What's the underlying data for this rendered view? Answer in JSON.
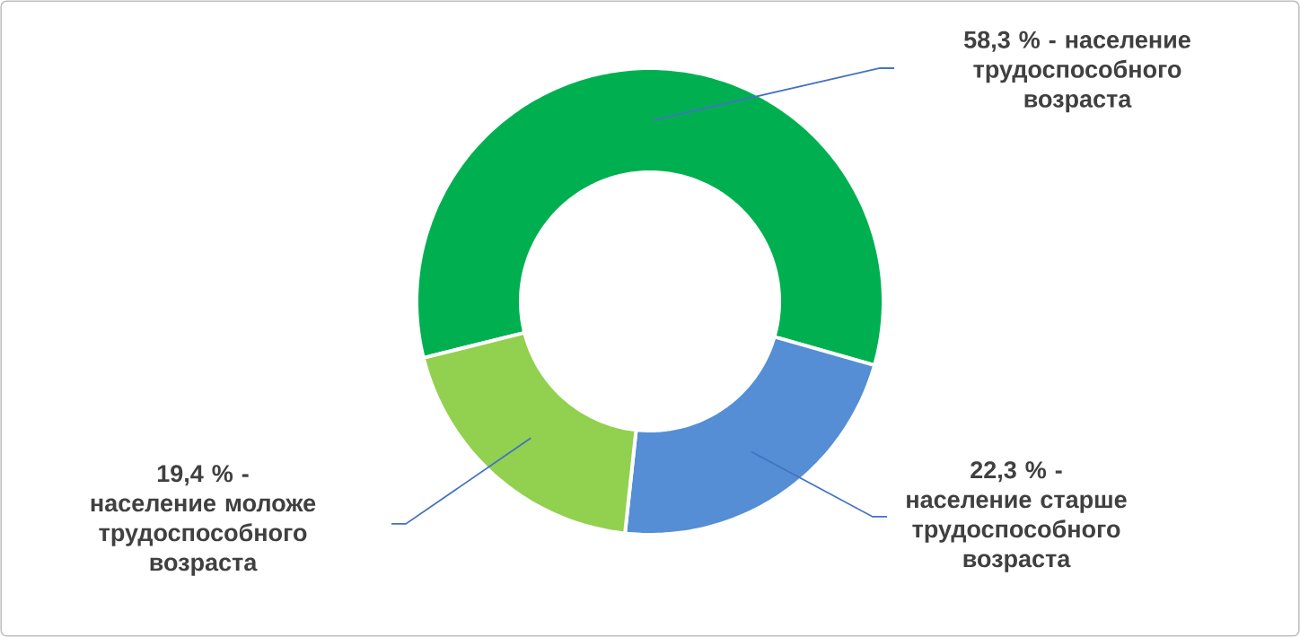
{
  "chart_data": {
    "type": "donut",
    "categories": [
      "58,3 % - население трудоспособного возраста",
      "22,3 % - население старше трудоспособного возраста",
      "19,4 % - население моложе трудоспособного возраста"
    ],
    "values": [
      58.3,
      22.3,
      19.4
    ],
    "colors": [
      "#00b050",
      "#558ed5",
      "#92d050"
    ]
  }
}
